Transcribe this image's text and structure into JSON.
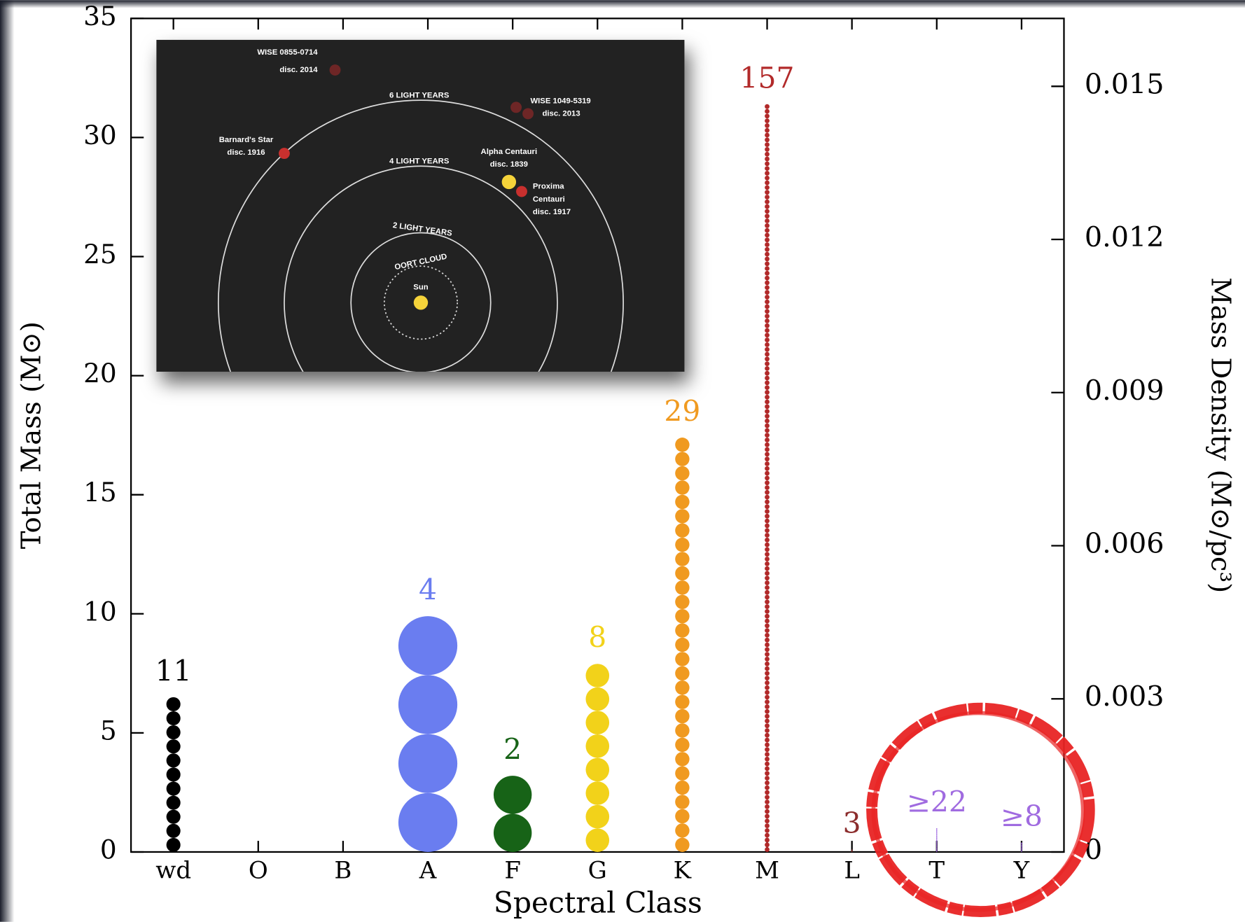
{
  "chart_data": {
    "type": "dot-column",
    "xlabel": "Spectral Class",
    "ylabel": "Total Mass (M⊙)",
    "y2label": "Mass Density (M⊙/pc³)",
    "categories": [
      "wd",
      "O",
      "B",
      "A",
      "F",
      "G",
      "K",
      "M",
      "L",
      "T",
      "Y"
    ],
    "values": [
      6.5,
      null,
      null,
      9.9,
      3.2,
      7.9,
      17.4,
      31.4,
      0.1,
      1.0,
      0.4
    ],
    "counts": [
      11,
      null,
      null,
      4,
      2,
      8,
      29,
      157,
      3,
      {
        "value": 22,
        "label": "≥22"
      },
      {
        "value": 8,
        "label": "≥8"
      }
    ],
    "colors": [
      "#000000",
      null,
      null,
      "#6a7df0",
      "#176317",
      "#f2d21a",
      "#f09a20",
      "#b22a2a",
      "#8c2d2d",
      "#a06be0",
      "#a06be0"
    ],
    "ylim": [
      0,
      35
    ],
    "yticks": [
      0,
      5,
      10,
      15,
      20,
      25,
      30,
      35
    ],
    "y2lim": [
      0,
      0.01633
    ],
    "y2ticks": [
      0,
      0.003,
      0.006,
      0.009,
      0.012,
      0.015
    ]
  },
  "inset": {
    "labels": [
      "WISE 0855-0714",
      "disc. 2014",
      "6 LIGHT YEARS",
      "WISE 1049-5319",
      "disc. 2013",
      "Barnard's Star",
      "disc. 1916",
      "4 LIGHT YEARS",
      "Alpha Centauri",
      "disc. 1839",
      "Proxima",
      "Centauri",
      "disc. 1917",
      "2 LIGHT YEARS",
      "OORT CLOUD",
      "Sun"
    ]
  }
}
